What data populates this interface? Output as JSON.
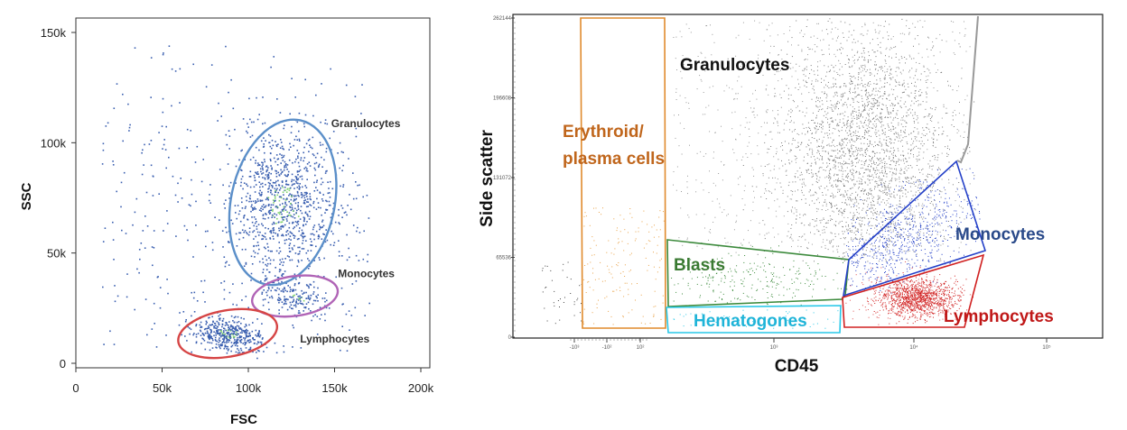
{
  "chart_data": [
    {
      "type": "scatter",
      "title": "",
      "xlabel": "FSC",
      "ylabel": "SSC",
      "xlim": [
        0,
        200000
      ],
      "ylim": [
        0,
        155000
      ],
      "x_ticks": [
        0,
        50000,
        100000,
        150000,
        200000
      ],
      "x_tick_labels": [
        "0",
        "50k",
        "100k",
        "150k",
        "200k"
      ],
      "y_ticks": [
        0,
        50000,
        100000,
        150000
      ],
      "y_tick_labels": [
        "0",
        "50k",
        "100k",
        "150k"
      ],
      "point_color": "#3a5fb0",
      "point_color_dense": "#7fd36b",
      "populations": [
        {
          "name": "Granulocytes",
          "gate": "ellipse",
          "color": "#5b8fc9",
          "center": [
            120000,
            73000
          ],
          "radius": [
            30000,
            38000
          ],
          "rotation_deg": 12
        },
        {
          "name": "Monocytes",
          "gate": "ellipse",
          "color": "#b064b6",
          "center": [
            127000,
            30500
          ],
          "radius": [
            25000,
            9000
          ],
          "rotation_deg": -8
        },
        {
          "name": "Lymphocytes",
          "gate": "ellipse",
          "color": "#d64545",
          "center": [
            88000,
            13500
          ],
          "radius": [
            29000,
            10500
          ],
          "rotation_deg": -10
        }
      ]
    },
    {
      "type": "scatter",
      "title": "",
      "xlabel": "CD45",
      "ylabel": "Side scatter",
      "y_tick_labels": [
        "262144",
        "196608",
        "131072",
        "65536",
        "0"
      ],
      "x_tick_labels": [
        "-10³",
        "-10²",
        "10²",
        "10³",
        "10⁴",
        "10⁵"
      ],
      "point_color": "#888888",
      "gates": [
        {
          "name": "Granulocytes",
          "label_lines": [
            "Granulocytes"
          ],
          "color": "#222222",
          "label_color": "#111111"
        },
        {
          "name": "Erythroid/plasma cells",
          "label_lines": [
            "Erythroid/",
            "plasma cells"
          ],
          "color": "#e08a2c",
          "label_color": "#c0661c"
        },
        {
          "name": "Blasts",
          "label_lines": [
            "Blasts"
          ],
          "color": "#3c8a3c",
          "label_color": "#3a7a32"
        },
        {
          "name": "Hematogones",
          "label_lines": [
            "Hematogones"
          ],
          "color": "#28c8e8",
          "label_color": "#1fb4d8"
        },
        {
          "name": "Monocytes",
          "label_lines": [
            "Monocytes"
          ],
          "color": "#2440c8",
          "label_color": "#2a4a8a"
        },
        {
          "name": "Lymphocytes",
          "label_lines": [
            "Lymphocytes"
          ],
          "color": "#d02020",
          "label_color": "#c01818"
        }
      ]
    }
  ]
}
